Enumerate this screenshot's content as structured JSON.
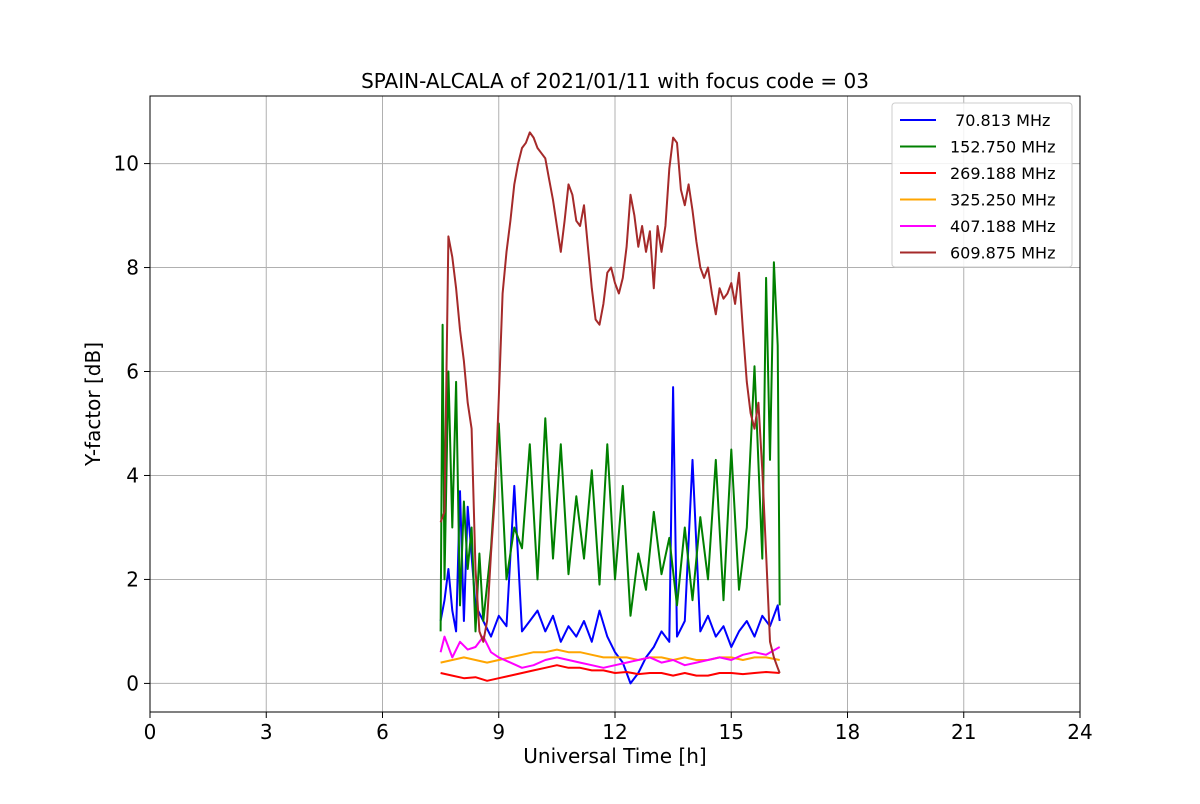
{
  "chart_data": {
    "type": "line",
    "title": "SPAIN-ALCALA of 2021/01/11 with focus code = 03",
    "xlabel": "Universal Time [h]",
    "ylabel": "Y-factor [dB]",
    "xlim": [
      0,
      24
    ],
    "ylim": [
      -0.55,
      11.3
    ],
    "xticks": [
      0,
      3,
      6,
      9,
      12,
      15,
      18,
      21,
      24
    ],
    "yticks": [
      0,
      2,
      4,
      6,
      8,
      10
    ],
    "grid": true,
    "legend_position": "top-right",
    "series": [
      {
        "name": " 70.813 MHz",
        "color": "#0000ff",
        "x": [
          7.5,
          7.6,
          7.7,
          7.8,
          7.9,
          8.0,
          8.1,
          8.2,
          8.4,
          8.6,
          8.8,
          9.0,
          9.2,
          9.4,
          9.6,
          9.8,
          10.0,
          10.2,
          10.4,
          10.6,
          10.8,
          11.0,
          11.2,
          11.4,
          11.6,
          11.8,
          12.0,
          12.2,
          12.4,
          12.6,
          12.8,
          13.0,
          13.2,
          13.4,
          13.5,
          13.6,
          13.8,
          14.0,
          14.2,
          14.4,
          14.6,
          14.8,
          15.0,
          15.2,
          15.4,
          15.6,
          15.8,
          16.0,
          16.2,
          16.25
        ],
        "y": [
          1.2,
          1.6,
          2.2,
          1.4,
          1.0,
          3.7,
          1.2,
          3.4,
          1.5,
          1.2,
          0.9,
          1.3,
          1.1,
          3.8,
          1.0,
          1.2,
          1.4,
          1.0,
          1.3,
          0.8,
          1.1,
          0.9,
          1.2,
          0.8,
          1.4,
          0.9,
          0.6,
          0.4,
          0.0,
          0.2,
          0.5,
          0.7,
          1.0,
          0.8,
          5.7,
          0.9,
          1.2,
          4.3,
          1.0,
          1.3,
          0.9,
          1.1,
          0.7,
          1.0,
          1.2,
          0.9,
          1.3,
          1.1,
          1.5,
          1.2
        ]
      },
      {
        "name": "152.750 MHz",
        "color": "#008000",
        "x": [
          7.5,
          7.55,
          7.6,
          7.7,
          7.8,
          7.9,
          8.0,
          8.1,
          8.2,
          8.3,
          8.4,
          8.5,
          8.6,
          8.8,
          9.0,
          9.2,
          9.4,
          9.6,
          9.8,
          10.0,
          10.2,
          10.4,
          10.6,
          10.8,
          11.0,
          11.2,
          11.4,
          11.6,
          11.8,
          12.0,
          12.2,
          12.4,
          12.6,
          12.8,
          13.0,
          13.2,
          13.4,
          13.6,
          13.8,
          14.0,
          14.2,
          14.4,
          14.6,
          14.8,
          15.0,
          15.2,
          15.4,
          15.6,
          15.8,
          15.9,
          16.0,
          16.1,
          16.2,
          16.25
        ],
        "y": [
          1.0,
          6.9,
          2.0,
          6.0,
          3.0,
          5.8,
          1.5,
          3.5,
          2.2,
          3.0,
          1.0,
          2.5,
          1.2,
          2.6,
          5.0,
          2.0,
          3.0,
          2.6,
          4.6,
          2.0,
          5.1,
          2.4,
          4.6,
          2.1,
          3.6,
          2.4,
          4.1,
          1.9,
          4.6,
          2.0,
          3.8,
          1.3,
          2.5,
          1.8,
          3.3,
          2.1,
          2.8,
          1.5,
          3.0,
          1.6,
          3.2,
          2.0,
          4.3,
          1.6,
          4.5,
          1.8,
          3.0,
          6.1,
          2.4,
          7.8,
          4.3,
          8.1,
          6.5,
          1.5
        ]
      },
      {
        "name": "269.188 MHz",
        "color": "#ff0000",
        "x": [
          7.5,
          7.8,
          8.1,
          8.4,
          8.7,
          9.0,
          9.3,
          9.6,
          9.9,
          10.2,
          10.5,
          10.8,
          11.1,
          11.4,
          11.7,
          12.0,
          12.3,
          12.6,
          12.9,
          13.2,
          13.5,
          13.8,
          14.1,
          14.4,
          14.7,
          15.0,
          15.3,
          15.6,
          15.9,
          16.25
        ],
        "y": [
          0.2,
          0.15,
          0.1,
          0.12,
          0.05,
          0.1,
          0.15,
          0.2,
          0.25,
          0.3,
          0.35,
          0.3,
          0.3,
          0.25,
          0.25,
          0.2,
          0.22,
          0.18,
          0.2,
          0.2,
          0.15,
          0.2,
          0.15,
          0.15,
          0.2,
          0.2,
          0.18,
          0.2,
          0.22,
          0.2
        ]
      },
      {
        "name": "325.250 MHz",
        "color": "#ffa500",
        "x": [
          7.5,
          7.8,
          8.1,
          8.4,
          8.7,
          9.0,
          9.3,
          9.6,
          9.9,
          10.2,
          10.5,
          10.8,
          11.1,
          11.4,
          11.7,
          12.0,
          12.3,
          12.6,
          12.9,
          13.2,
          13.5,
          13.8,
          14.1,
          14.4,
          14.7,
          15.0,
          15.3,
          15.6,
          15.9,
          16.25
        ],
        "y": [
          0.4,
          0.45,
          0.5,
          0.45,
          0.4,
          0.45,
          0.5,
          0.55,
          0.6,
          0.6,
          0.65,
          0.6,
          0.6,
          0.55,
          0.5,
          0.5,
          0.5,
          0.45,
          0.5,
          0.5,
          0.45,
          0.5,
          0.45,
          0.45,
          0.5,
          0.5,
          0.45,
          0.5,
          0.5,
          0.45
        ]
      },
      {
        "name": "407.188 MHz",
        "color": "#ff00ff",
        "x": [
          7.5,
          7.6,
          7.8,
          8.0,
          8.2,
          8.4,
          8.6,
          8.8,
          9.0,
          9.3,
          9.6,
          9.9,
          10.2,
          10.5,
          10.8,
          11.1,
          11.4,
          11.7,
          12.0,
          12.3,
          12.6,
          12.9,
          13.2,
          13.5,
          13.8,
          14.1,
          14.4,
          14.7,
          15.0,
          15.3,
          15.6,
          15.9,
          16.25
        ],
        "y": [
          0.6,
          0.9,
          0.5,
          0.8,
          0.65,
          0.7,
          0.9,
          0.6,
          0.5,
          0.4,
          0.3,
          0.35,
          0.45,
          0.5,
          0.45,
          0.4,
          0.35,
          0.3,
          0.35,
          0.4,
          0.45,
          0.5,
          0.4,
          0.45,
          0.35,
          0.4,
          0.45,
          0.5,
          0.45,
          0.55,
          0.6,
          0.55,
          0.7
        ]
      },
      {
        "name": "609.875 MHz",
        "color": "#a52a2a",
        "x": [
          7.5,
          7.6,
          7.7,
          7.8,
          7.9,
          8.0,
          8.1,
          8.2,
          8.3,
          8.4,
          8.5,
          8.6,
          8.7,
          8.8,
          8.9,
          9.0,
          9.1,
          9.2,
          9.3,
          9.4,
          9.5,
          9.6,
          9.7,
          9.8,
          9.9,
          10.0,
          10.1,
          10.2,
          10.3,
          10.4,
          10.5,
          10.6,
          10.7,
          10.8,
          10.9,
          11.0,
          11.1,
          11.2,
          11.3,
          11.4,
          11.5,
          11.6,
          11.7,
          11.8,
          11.9,
          12.0,
          12.1,
          12.2,
          12.3,
          12.4,
          12.5,
          12.6,
          12.7,
          12.8,
          12.9,
          13.0,
          13.1,
          13.2,
          13.3,
          13.4,
          13.5,
          13.6,
          13.7,
          13.8,
          13.9,
          14.0,
          14.1,
          14.2,
          14.3,
          14.4,
          14.5,
          14.6,
          14.7,
          14.8,
          14.9,
          15.0,
          15.1,
          15.2,
          15.3,
          15.4,
          15.5,
          15.6,
          15.7,
          15.8,
          15.9,
          16.0,
          16.1,
          16.2,
          16.25
        ],
        "y": [
          3.1,
          3.3,
          8.6,
          8.2,
          7.6,
          6.8,
          6.2,
          5.4,
          4.9,
          2.2,
          1.0,
          0.8,
          1.2,
          2.5,
          3.6,
          5.5,
          7.5,
          8.3,
          8.9,
          9.6,
          10.0,
          10.3,
          10.4,
          10.6,
          10.5,
          10.3,
          10.2,
          10.1,
          9.7,
          9.3,
          8.8,
          8.3,
          8.9,
          9.6,
          9.4,
          8.9,
          8.8,
          9.2,
          8.4,
          7.6,
          7.0,
          6.9,
          7.3,
          7.9,
          8.0,
          7.7,
          7.5,
          7.8,
          8.4,
          9.4,
          9.0,
          8.4,
          8.8,
          8.3,
          8.7,
          7.6,
          8.8,
          8.3,
          8.8,
          9.9,
          10.5,
          10.4,
          9.5,
          9.2,
          9.6,
          9.1,
          8.5,
          8.0,
          7.8,
          8.0,
          7.5,
          7.1,
          7.6,
          7.4,
          7.5,
          7.7,
          7.3,
          7.9,
          6.8,
          5.8,
          5.2,
          4.9,
          5.4,
          4.1,
          2.5,
          0.8,
          0.5,
          0.3,
          0.2
        ]
      }
    ]
  }
}
